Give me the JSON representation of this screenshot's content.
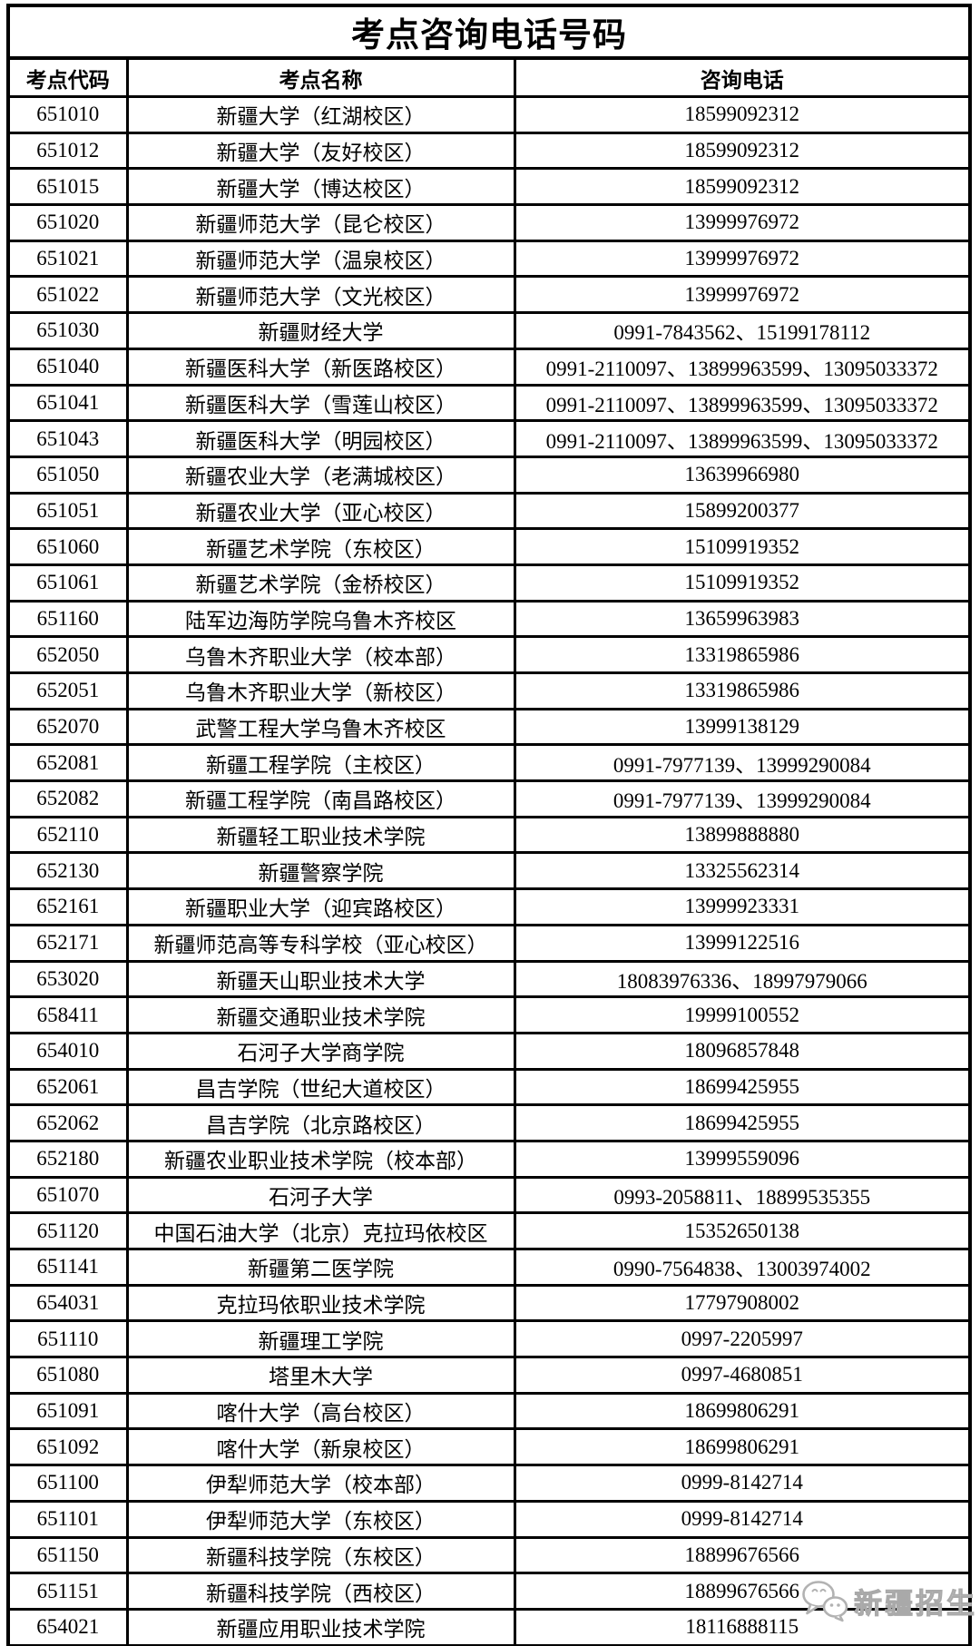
{
  "title": "考点咨询电话号码",
  "table": {
    "headers": [
      "考点代码",
      "考点名称",
      "咨询电话"
    ],
    "rows": [
      [
        "651010",
        "新疆大学（红湖校区）",
        "18599092312"
      ],
      [
        "651012",
        "新疆大学（友好校区）",
        "18599092312"
      ],
      [
        "651015",
        "新疆大学（博达校区）",
        "18599092312"
      ],
      [
        "651020",
        "新疆师范大学（昆仑校区）",
        "13999976972"
      ],
      [
        "651021",
        "新疆师范大学（温泉校区）",
        "13999976972"
      ],
      [
        "651022",
        "新疆师范大学（文光校区）",
        "13999976972"
      ],
      [
        "651030",
        "新疆财经大学",
        "0991-7843562、15199178112"
      ],
      [
        "651040",
        "新疆医科大学（新医路校区）",
        "0991-2110097、13899963599、13095033372"
      ],
      [
        "651041",
        "新疆医科大学（雪莲山校区）",
        "0991-2110097、13899963599、13095033372"
      ],
      [
        "651043",
        "新疆医科大学（明园校区）",
        "0991-2110097、13899963599、13095033372"
      ],
      [
        "651050",
        "新疆农业大学（老满城校区）",
        "13639966980"
      ],
      [
        "651051",
        "新疆农业大学（亚心校区）",
        "15899200377"
      ],
      [
        "651060",
        "新疆艺术学院（东校区）",
        "15109919352"
      ],
      [
        "651061",
        "新疆艺术学院（金桥校区）",
        "15109919352"
      ],
      [
        "651160",
        "陆军边海防学院乌鲁木齐校区",
        "13659963983"
      ],
      [
        "652050",
        "乌鲁木齐职业大学（校本部）",
        "13319865986"
      ],
      [
        "652051",
        "乌鲁木齐职业大学（新校区）",
        "13319865986"
      ],
      [
        "652070",
        "武警工程大学乌鲁木齐校区",
        "13999138129"
      ],
      [
        "652081",
        "新疆工程学院（主校区）",
        "0991-7977139、13999290084"
      ],
      [
        "652082",
        "新疆工程学院（南昌路校区）",
        "0991-7977139、13999290084"
      ],
      [
        "652110",
        "新疆轻工职业技术学院",
        "13899888880"
      ],
      [
        "652130",
        "新疆警察学院",
        "13325562314"
      ],
      [
        "652161",
        "新疆职业大学（迎宾路校区）",
        "13999923331"
      ],
      [
        "652171",
        "新疆师范高等专科学校（亚心校区）",
        "13999122516"
      ],
      [
        "653020",
        "新疆天山职业技术大学",
        "18083976336、18997979066"
      ],
      [
        "658411",
        "新疆交通职业技术学院",
        "19999100552"
      ],
      [
        "654010",
        "石河子大学商学院",
        "18096857848"
      ],
      [
        "652061",
        "昌吉学院（世纪大道校区）",
        "18699425955"
      ],
      [
        "652062",
        "昌吉学院（北京路校区）",
        "18699425955"
      ],
      [
        "652180",
        "新疆农业职业技术学院（校本部）",
        "13999559096"
      ],
      [
        "651070",
        "石河子大学",
        "0993-2058811、18899535355"
      ],
      [
        "651120",
        "中国石油大学（北京）克拉玛依校区",
        "15352650138"
      ],
      [
        "651141",
        "新疆第二医学院",
        "0990-7564838、13003974002"
      ],
      [
        "654031",
        "克拉玛依职业技术学院",
        "17797908002"
      ],
      [
        "651110",
        "新疆理工学院",
        "0997-2205997"
      ],
      [
        "651080",
        "塔里木大学",
        "0997-4680851"
      ],
      [
        "651091",
        "喀什大学（高台校区）",
        "18699806291"
      ],
      [
        "651092",
        "喀什大学（新泉校区）",
        "18699806291"
      ],
      [
        "651100",
        "伊犁师范大学（校本部）",
        "0999-8142714"
      ],
      [
        "651101",
        "伊犁师范大学（东校区）",
        "0999-8142714"
      ],
      [
        "651150",
        "新疆科技学院（东校区）",
        "18899676566"
      ],
      [
        "651151",
        "新疆科技学院（西校区）",
        "18899676566"
      ],
      [
        "654021",
        "新疆应用职业技术学院",
        "18116888115"
      ]
    ]
  },
  "watermark": {
    "text": "新疆招生",
    "icon": "wechat-icon",
    "color": "#b5b5b5"
  }
}
